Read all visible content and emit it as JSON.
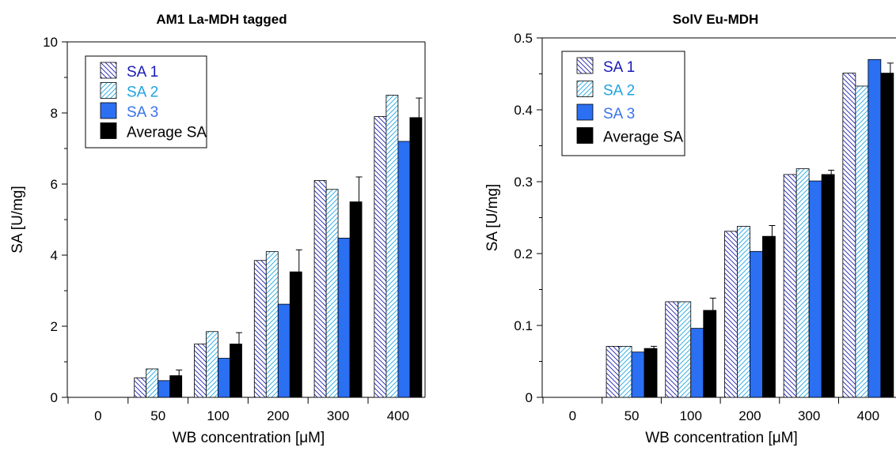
{
  "colors": {
    "sa1": "#1f1fb3",
    "sa2": "#20a6e6",
    "sa3": "#2b6ff2",
    "avg": "#000000",
    "sa1_text": "#1a1ab8",
    "sa2_text": "#1fa3e0",
    "sa3_text": "#3a73ee"
  },
  "chart_data": [
    {
      "type": "bar",
      "title": "AM1 La-MDH tagged",
      "xlabel": "WB concentration [μM]",
      "ylabel": "SA [U/mg]",
      "categories": [
        "0",
        "50",
        "100",
        "200",
        "300",
        "400"
      ],
      "ylim": [
        0,
        10
      ],
      "yticks": [
        0,
        2,
        4,
        6,
        8,
        10
      ],
      "ytick_labels": [
        "0",
        "2",
        "4",
        "6",
        "8",
        "10"
      ],
      "legend_position": "top-left",
      "grid": false,
      "series": [
        {
          "name": "SA 1",
          "values": [
            0,
            0.55,
            1.5,
            3.85,
            6.1,
            7.9
          ]
        },
        {
          "name": "SA 2",
          "values": [
            0,
            0.8,
            1.85,
            4.1,
            5.85,
            8.5
          ]
        },
        {
          "name": "SA 3",
          "values": [
            0,
            0.47,
            1.1,
            2.62,
            4.48,
            7.2
          ]
        },
        {
          "name": "Average SA",
          "values": [
            0,
            0.61,
            1.5,
            3.53,
            5.5,
            7.87
          ],
          "error": [
            0,
            0.16,
            0.32,
            0.62,
            0.7,
            0.55
          ]
        }
      ]
    },
    {
      "type": "bar",
      "title": "SolV Eu-MDH",
      "xlabel": "WB concentration [μM]",
      "ylabel": "SA [U/mg]",
      "categories": [
        "0",
        "50",
        "100",
        "200",
        "300",
        "400"
      ],
      "ylim": [
        0,
        0.5
      ],
      "yticks": [
        0,
        0.1,
        0.2,
        0.3,
        0.4,
        0.5
      ],
      "ytick_labels": [
        "0",
        "0.1",
        "0.2",
        "0.3",
        "0.4",
        "0.5"
      ],
      "legend_position": "top-left",
      "grid": false,
      "series": [
        {
          "name": "SA 1",
          "values": [
            0,
            0.071,
            0.133,
            0.231,
            0.31,
            0.451
          ]
        },
        {
          "name": "SA 2",
          "values": [
            0,
            0.071,
            0.133,
            0.238,
            0.318,
            0.433
          ]
        },
        {
          "name": "SA 3",
          "values": [
            0,
            0.063,
            0.096,
            0.203,
            0.301,
            0.47
          ]
        },
        {
          "name": "Average SA",
          "values": [
            0,
            0.068,
            0.121,
            0.224,
            0.31,
            0.451
          ],
          "error": [
            0,
            0.003,
            0.017,
            0.015,
            0.006,
            0.014
          ]
        }
      ]
    }
  ]
}
